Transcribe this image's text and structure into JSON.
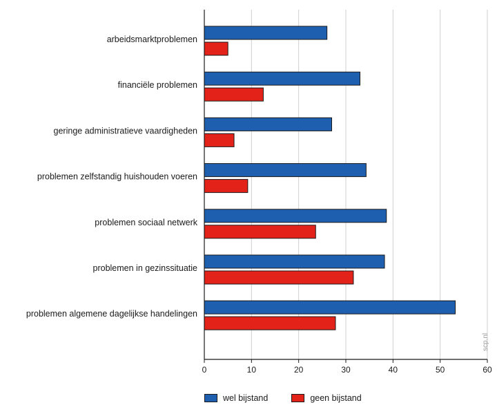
{
  "chart_data": {
    "type": "bar",
    "orientation": "horizontal",
    "categories": [
      "arbeidsmarktproblemen",
      "financiële problemen",
      "geringe administratieve vaardigheden",
      "problemen zelfstandig huishouden voeren",
      "problemen sociaal netwerk",
      "problemen in gezinssituatie",
      "problemen algemene dagelijkse handelingen"
    ],
    "series": [
      {
        "name": "wel bijstand",
        "color": "#1f5fb0",
        "values": [
          26,
          33,
          27,
          34.3,
          38.6,
          38.2,
          53.2
        ]
      },
      {
        "name": "geen bijstand",
        "color": "#e3231a",
        "values": [
          5,
          12.5,
          6.3,
          9.2,
          23.6,
          31.6,
          27.8
        ]
      }
    ],
    "xlim": [
      0,
      60
    ],
    "xticks": [
      "0",
      "10",
      "20",
      "30",
      "40",
      "50",
      "60"
    ],
    "grid": true,
    "legend": "bottom",
    "watermark": "scp.nl"
  }
}
